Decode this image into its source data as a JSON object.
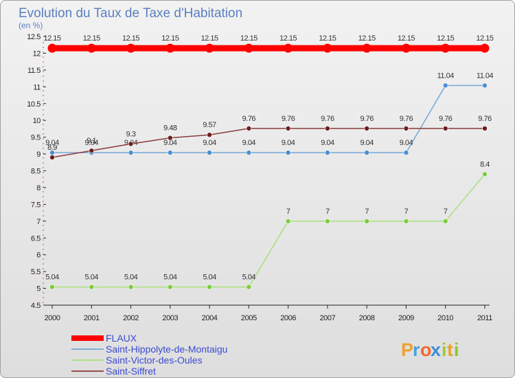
{
  "chart_data": {
    "type": "line",
    "title": "Evolution du Taux de Taxe d'Habitation",
    "subtitle": "(en %)",
    "x": [
      "2000",
      "2001",
      "2002",
      "2003",
      "2004",
      "2005",
      "2006",
      "2007",
      "2008",
      "2009",
      "2010",
      "2011"
    ],
    "ylim": [
      4.5,
      12.5
    ],
    "yticks": [
      "4.5",
      "5",
      "5.5",
      "6",
      "6.5",
      "7",
      "7.5",
      "8",
      "8.5",
      "9",
      "9.5",
      "10",
      "10.5",
      "11",
      "11.5",
      "12",
      "12.5"
    ],
    "grid": false,
    "legend_position": "bottom-left",
    "series": [
      {
        "name": "FLAUX",
        "color": "#ff0000",
        "marker_color": "#ff0000",
        "values": [
          12.15,
          12.15,
          12.15,
          12.15,
          12.15,
          12.15,
          12.15,
          12.15,
          12.15,
          12.15,
          12.15,
          12.15
        ],
        "labels": [
          "12.15",
          "12.15",
          "12.15",
          "12.15",
          "12.15",
          "12.15",
          "12.15",
          "12.15",
          "12.15",
          "12.15",
          "12.15",
          "12.15"
        ]
      },
      {
        "name": "Saint-Hippolyte-de-Montaigu",
        "color": "#74a8d6",
        "marker_color": "#4a8fd0",
        "values": [
          9.04,
          9.04,
          9.04,
          9.04,
          9.04,
          9.04,
          9.04,
          9.04,
          9.04,
          9.04,
          11.04,
          11.04
        ],
        "labels": [
          "9.04",
          "9.04",
          "9.04",
          "9.04",
          "9.04",
          "9.04",
          "9.04",
          "9.04",
          "9.04",
          "9.04",
          "11.04",
          "11.04"
        ]
      },
      {
        "name": "Saint-Victor-des-Oules",
        "color": "#a8e07a",
        "marker_color": "#7ccc3a",
        "values": [
          5.04,
          5.04,
          5.04,
          5.04,
          5.04,
          5.04,
          7,
          7,
          7,
          7,
          7,
          8.4
        ],
        "labels": [
          "5.04",
          "5.04",
          "5.04",
          "5.04",
          "5.04",
          "5.04",
          "7",
          "7",
          "7",
          "7",
          "7",
          "8.4"
        ]
      },
      {
        "name": "Saint-Siffret",
        "color": "#8b3a3a",
        "marker_color": "#6e1f1f",
        "values": [
          8.9,
          9.1,
          9.3,
          9.48,
          9.57,
          9.76,
          9.76,
          9.76,
          9.76,
          9.76,
          9.76,
          9.76
        ],
        "labels": [
          "8.9",
          "9.1",
          "9.3",
          "9.48",
          "9.57",
          "9.76",
          "9.76",
          "9.76",
          "9.76",
          "9.76",
          "9.76",
          "9.76"
        ]
      }
    ]
  },
  "logo": {
    "letters": [
      "P",
      "r",
      "o",
      "x",
      "i",
      "t",
      "i"
    ],
    "colors": [
      "#f0a030",
      "#4aa0e0",
      "#f06a30",
      "#3a90d8",
      "#a0c830",
      "#e8a030",
      "#8ac830"
    ]
  }
}
